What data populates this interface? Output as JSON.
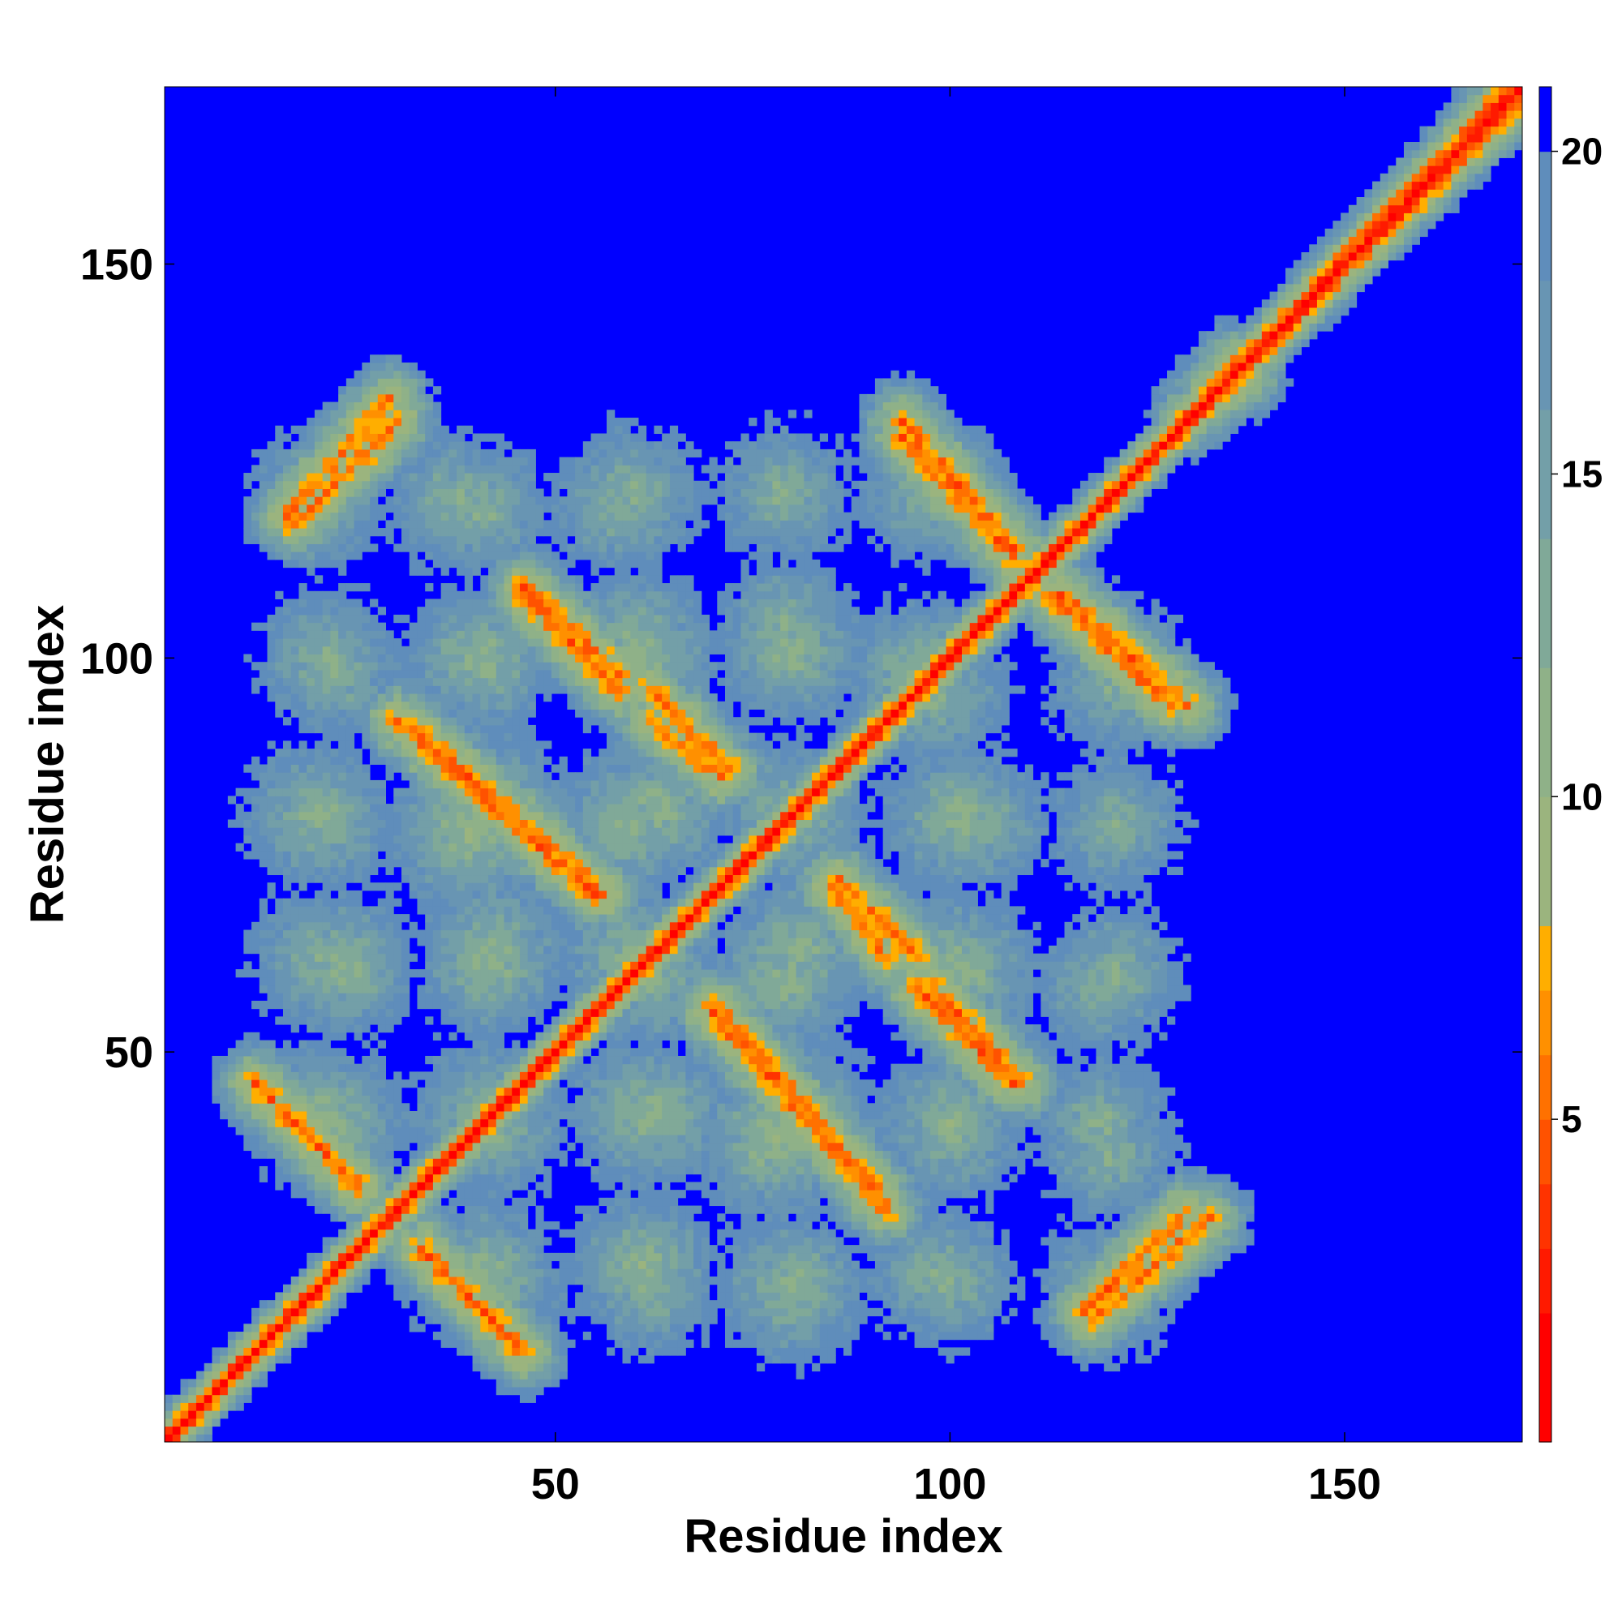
{
  "chart_data": {
    "type": "heatmap",
    "title": "",
    "xlabel": "Residue index",
    "ylabel": "Residue index",
    "n_residues": 172,
    "xlim": [
      1,
      172
    ],
    "ylim": [
      1,
      172
    ],
    "x_ticks": [
      50,
      100,
      150
    ],
    "y_ticks": [
      50,
      100,
      150
    ],
    "colorbar": {
      "ticks": [
        5,
        10,
        15,
        20
      ],
      "range": [
        0,
        21
      ],
      "levels": [
        {
          "max": 2,
          "color": "#ff0000"
        },
        {
          "max": 3,
          "color": "#ff1a00"
        },
        {
          "max": 4,
          "color": "#ff3300"
        },
        {
          "max": 5,
          "color": "#ff5200"
        },
        {
          "max": 6,
          "color": "#ff7100"
        },
        {
          "max": 7,
          "color": "#ff9000"
        },
        {
          "max": 8,
          "color": "#ffae00"
        },
        {
          "max": 10,
          "color": "#9bb47e"
        },
        {
          "max": 12,
          "color": "#8fb188"
        },
        {
          "max": 14,
          "color": "#80a998"
        },
        {
          "max": 16,
          "color": "#739fa8"
        },
        {
          "max": 18,
          "color": "#6895b3"
        },
        {
          "max": 20,
          "color": "#5f8dbb"
        },
        {
          "max": 21,
          "color": "#0000ff"
        }
      ]
    },
    "cutoff_color": "#0000ff",
    "diagonal_band_distance": 3.8,
    "diagonal_band_end": 172,
    "contact_segments": [
      {
        "x": [
          12,
          25
        ],
        "y": [
          46,
          33
        ],
        "min_distance": 5
      },
      {
        "x": [
          34,
          45
        ],
        "y": [
          24,
          13
        ],
        "min_distance": 5
      },
      {
        "x": [
          30,
          55
        ],
        "y": [
          92,
          70
        ],
        "min_distance": 5
      },
      {
        "x": [
          46,
          58
        ],
        "y": [
          109,
          98
        ],
        "min_distance": 5
      },
      {
        "x": [
          62,
          72
        ],
        "y": [
          96,
          86
        ],
        "min_distance": 5.5
      },
      {
        "x": [
          70,
          91
        ],
        "y": [
          56,
          32
        ],
        "min_distance": 5
      },
      {
        "x": [
          85,
          92
        ],
        "y": [
          71,
          62
        ],
        "min_distance": 5.5
      },
      {
        "x": [
          96,
          108
        ],
        "y": [
          58,
          46
        ],
        "min_distance": 5
      },
      {
        "x": [
          94,
          108
        ],
        "y": [
          128,
          113
        ],
        "min_distance": 5
      },
      {
        "x": [
          114,
          130
        ],
        "y": [
          108,
          94
        ],
        "min_distance": 5
      },
      {
        "x": [
          17,
          30
        ],
        "y": [
          117,
          130
        ],
        "min_distance": 5.5
      },
      {
        "x": [
          118,
          133
        ],
        "y": [
          16,
          29
        ],
        "min_distance": 5.5
      },
      {
        "x": [
          130,
          138
        ],
        "y": [
          130,
          136
        ],
        "min_distance": 6.5
      }
    ],
    "clusters": [
      {
        "x": 37,
        "y": 120,
        "d": 12
      },
      {
        "x": 58,
        "y": 119,
        "d": 12
      },
      {
        "x": 79,
        "y": 121,
        "d": 12
      },
      {
        "x": 97,
        "y": 121,
        "d": 12
      },
      {
        "x": 22,
        "y": 98,
        "d": 12
      },
      {
        "x": 39,
        "y": 100,
        "d": 12
      },
      {
        "x": 60,
        "y": 102,
        "d": 11
      },
      {
        "x": 79,
        "y": 104,
        "d": 12
      },
      {
        "x": 98,
        "y": 96,
        "d": 11
      },
      {
        "x": 121,
        "y": 99,
        "d": 12
      },
      {
        "x": 20,
        "y": 80,
        "d": 11
      },
      {
        "x": 39,
        "y": 78,
        "d": 10
      },
      {
        "x": 59,
        "y": 79,
        "d": 11
      },
      {
        "x": 80,
        "y": 80,
        "d": 11
      },
      {
        "x": 101,
        "y": 80,
        "d": 11
      },
      {
        "x": 121,
        "y": 79,
        "d": 12
      },
      {
        "x": 23,
        "y": 61,
        "d": 11
      },
      {
        "x": 42,
        "y": 63,
        "d": 11
      },
      {
        "x": 60,
        "y": 62,
        "d": 11
      },
      {
        "x": 81,
        "y": 63,
        "d": 11
      },
      {
        "x": 100,
        "y": 61,
        "d": 11
      },
      {
        "x": 121,
        "y": 60,
        "d": 12
      },
      {
        "x": 22,
        "y": 41,
        "d": 11
      },
      {
        "x": 42,
        "y": 41,
        "d": 11
      },
      {
        "x": 61,
        "y": 42,
        "d": 11
      },
      {
        "x": 81,
        "y": 42,
        "d": 11
      },
      {
        "x": 100,
        "y": 41,
        "d": 11
      },
      {
        "x": 119,
        "y": 41,
        "d": 12
      },
      {
        "x": 43,
        "y": 20,
        "d": 12
      },
      {
        "x": 62,
        "y": 20,
        "d": 12
      },
      {
        "x": 81,
        "y": 20,
        "d": 12
      },
      {
        "x": 100,
        "y": 21,
        "d": 12
      },
      {
        "x": 120,
        "y": 20,
        "d": 12
      }
    ]
  }
}
